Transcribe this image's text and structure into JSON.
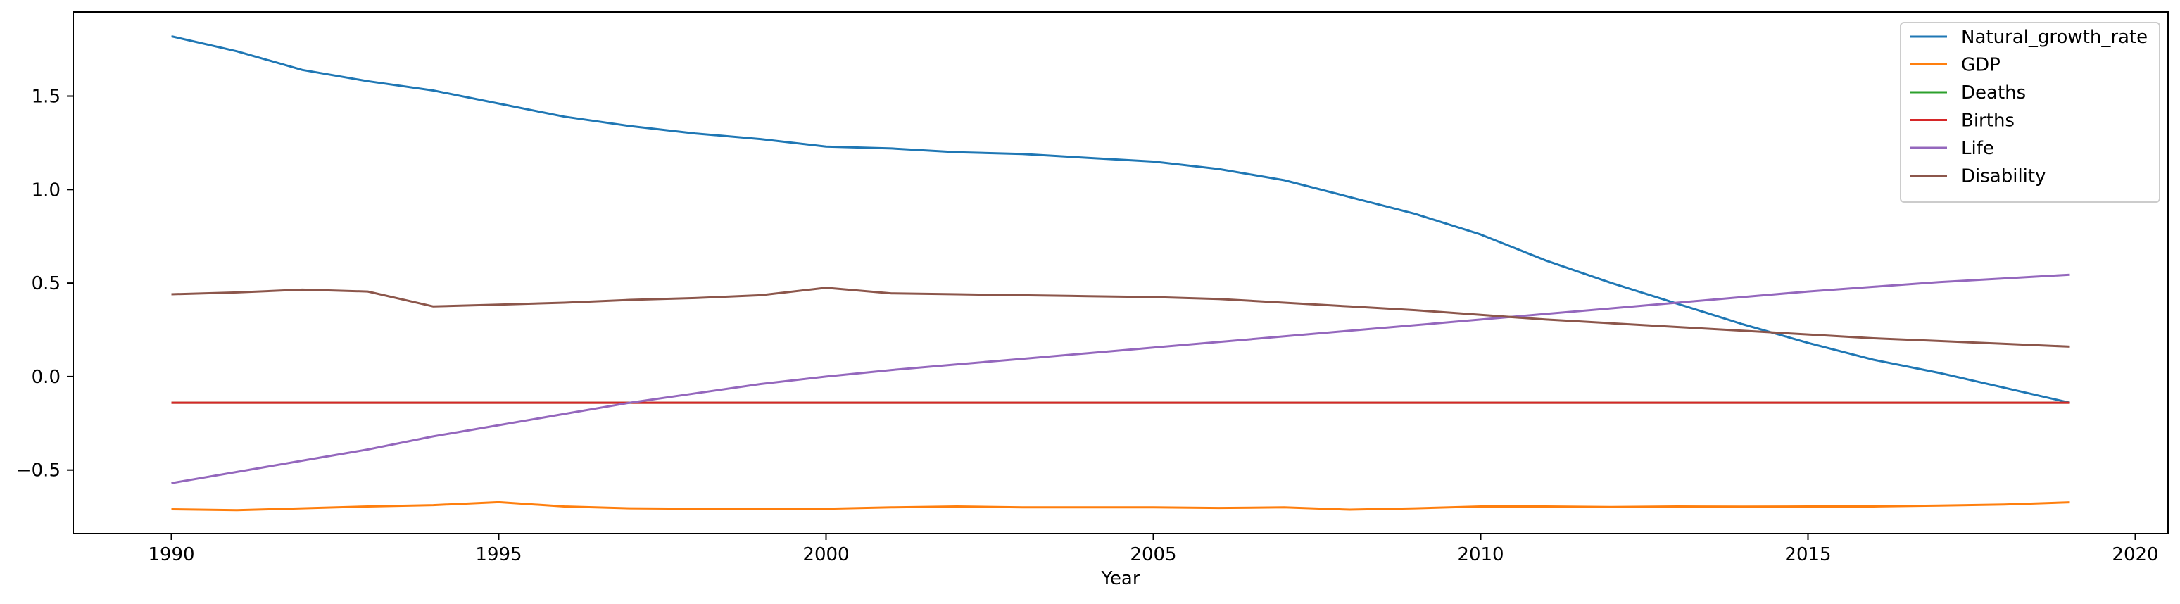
{
  "chart_data": {
    "type": "line",
    "title": "",
    "xlabel": "Year",
    "ylabel": "",
    "xlim": [
      1988.5,
      2020.5
    ],
    "ylim": [
      -0.84,
      1.95
    ],
    "xticks": [
      1990,
      1995,
      2000,
      2005,
      2010,
      2015,
      2020
    ],
    "yticks": [
      -0.5,
      0.0,
      0.5,
      1.0,
      1.5
    ],
    "ytick_labels": [
      "−0.5",
      "0.0",
      "0.5",
      "1.0",
      "1.5"
    ],
    "grid": false,
    "legend": "top-right",
    "x": [
      1990,
      1991,
      1992,
      1993,
      1994,
      1995,
      1996,
      1997,
      1998,
      1999,
      2000,
      2001,
      2002,
      2003,
      2004,
      2005,
      2006,
      2007,
      2008,
      2009,
      2010,
      2011,
      2012,
      2013,
      2014,
      2015,
      2016,
      2017,
      2018,
      2019
    ],
    "series": [
      {
        "name": "Natural_growth_rate",
        "color": "#1f77b4",
        "values": [
          1.82,
          1.74,
          1.64,
          1.58,
          1.53,
          1.46,
          1.39,
          1.34,
          1.3,
          1.27,
          1.23,
          1.22,
          1.2,
          1.19,
          1.17,
          1.15,
          1.11,
          1.05,
          0.96,
          0.87,
          0.76,
          0.62,
          0.5,
          0.39,
          0.28,
          0.18,
          0.09,
          0.02,
          -0.06,
          -0.14
        ]
      },
      {
        "name": "GDP",
        "color": "#ff7f0e",
        "values": [
          -0.71,
          -0.715,
          -0.705,
          -0.695,
          -0.688,
          -0.672,
          -0.695,
          -0.705,
          -0.707,
          -0.708,
          -0.707,
          -0.7,
          -0.695,
          -0.7,
          -0.7,
          -0.7,
          -0.703,
          -0.7,
          -0.712,
          -0.705,
          -0.695,
          -0.695,
          -0.698,
          -0.695,
          -0.696,
          -0.695,
          -0.695,
          -0.69,
          -0.685,
          -0.673
        ]
      },
      {
        "name": "Deaths",
        "color": "#2ca02c",
        "values": [
          -0.14,
          -0.14,
          -0.14,
          -0.14,
          -0.14,
          -0.14,
          -0.14,
          -0.14,
          -0.14,
          -0.14,
          -0.14,
          -0.14,
          -0.14,
          -0.14,
          -0.14,
          -0.14,
          -0.14,
          -0.14,
          -0.14,
          -0.14,
          -0.14,
          -0.14,
          -0.14,
          -0.14,
          -0.14,
          -0.14,
          -0.14,
          -0.14,
          -0.14,
          -0.14
        ]
      },
      {
        "name": "Births",
        "color": "#d62728",
        "values": [
          -0.14,
          -0.14,
          -0.14,
          -0.14,
          -0.14,
          -0.14,
          -0.14,
          -0.14,
          -0.14,
          -0.14,
          -0.14,
          -0.14,
          -0.14,
          -0.14,
          -0.14,
          -0.14,
          -0.14,
          -0.14,
          -0.14,
          -0.14,
          -0.14,
          -0.14,
          -0.14,
          -0.14,
          -0.14,
          -0.14,
          -0.14,
          -0.14,
          -0.14,
          -0.14
        ]
      },
      {
        "name": "Life",
        "color": "#9467bd",
        "values": [
          -0.57,
          -0.51,
          -0.45,
          -0.39,
          -0.32,
          -0.26,
          -0.2,
          -0.14,
          -0.09,
          -0.04,
          0.0,
          0.035,
          0.065,
          0.095,
          0.125,
          0.155,
          0.185,
          0.215,
          0.245,
          0.275,
          0.305,
          0.335,
          0.365,
          0.395,
          0.425,
          0.455,
          0.48,
          0.505,
          0.525,
          0.545
        ]
      },
      {
        "name": "Disability",
        "color": "#8c564b",
        "values": [
          0.44,
          0.45,
          0.465,
          0.455,
          0.375,
          0.385,
          0.395,
          0.41,
          0.42,
          0.435,
          0.475,
          0.445,
          0.44,
          0.435,
          0.43,
          0.425,
          0.415,
          0.395,
          0.375,
          0.355,
          0.33,
          0.305,
          0.285,
          0.265,
          0.245,
          0.225,
          0.205,
          0.19,
          0.175,
          0.16
        ]
      }
    ]
  }
}
